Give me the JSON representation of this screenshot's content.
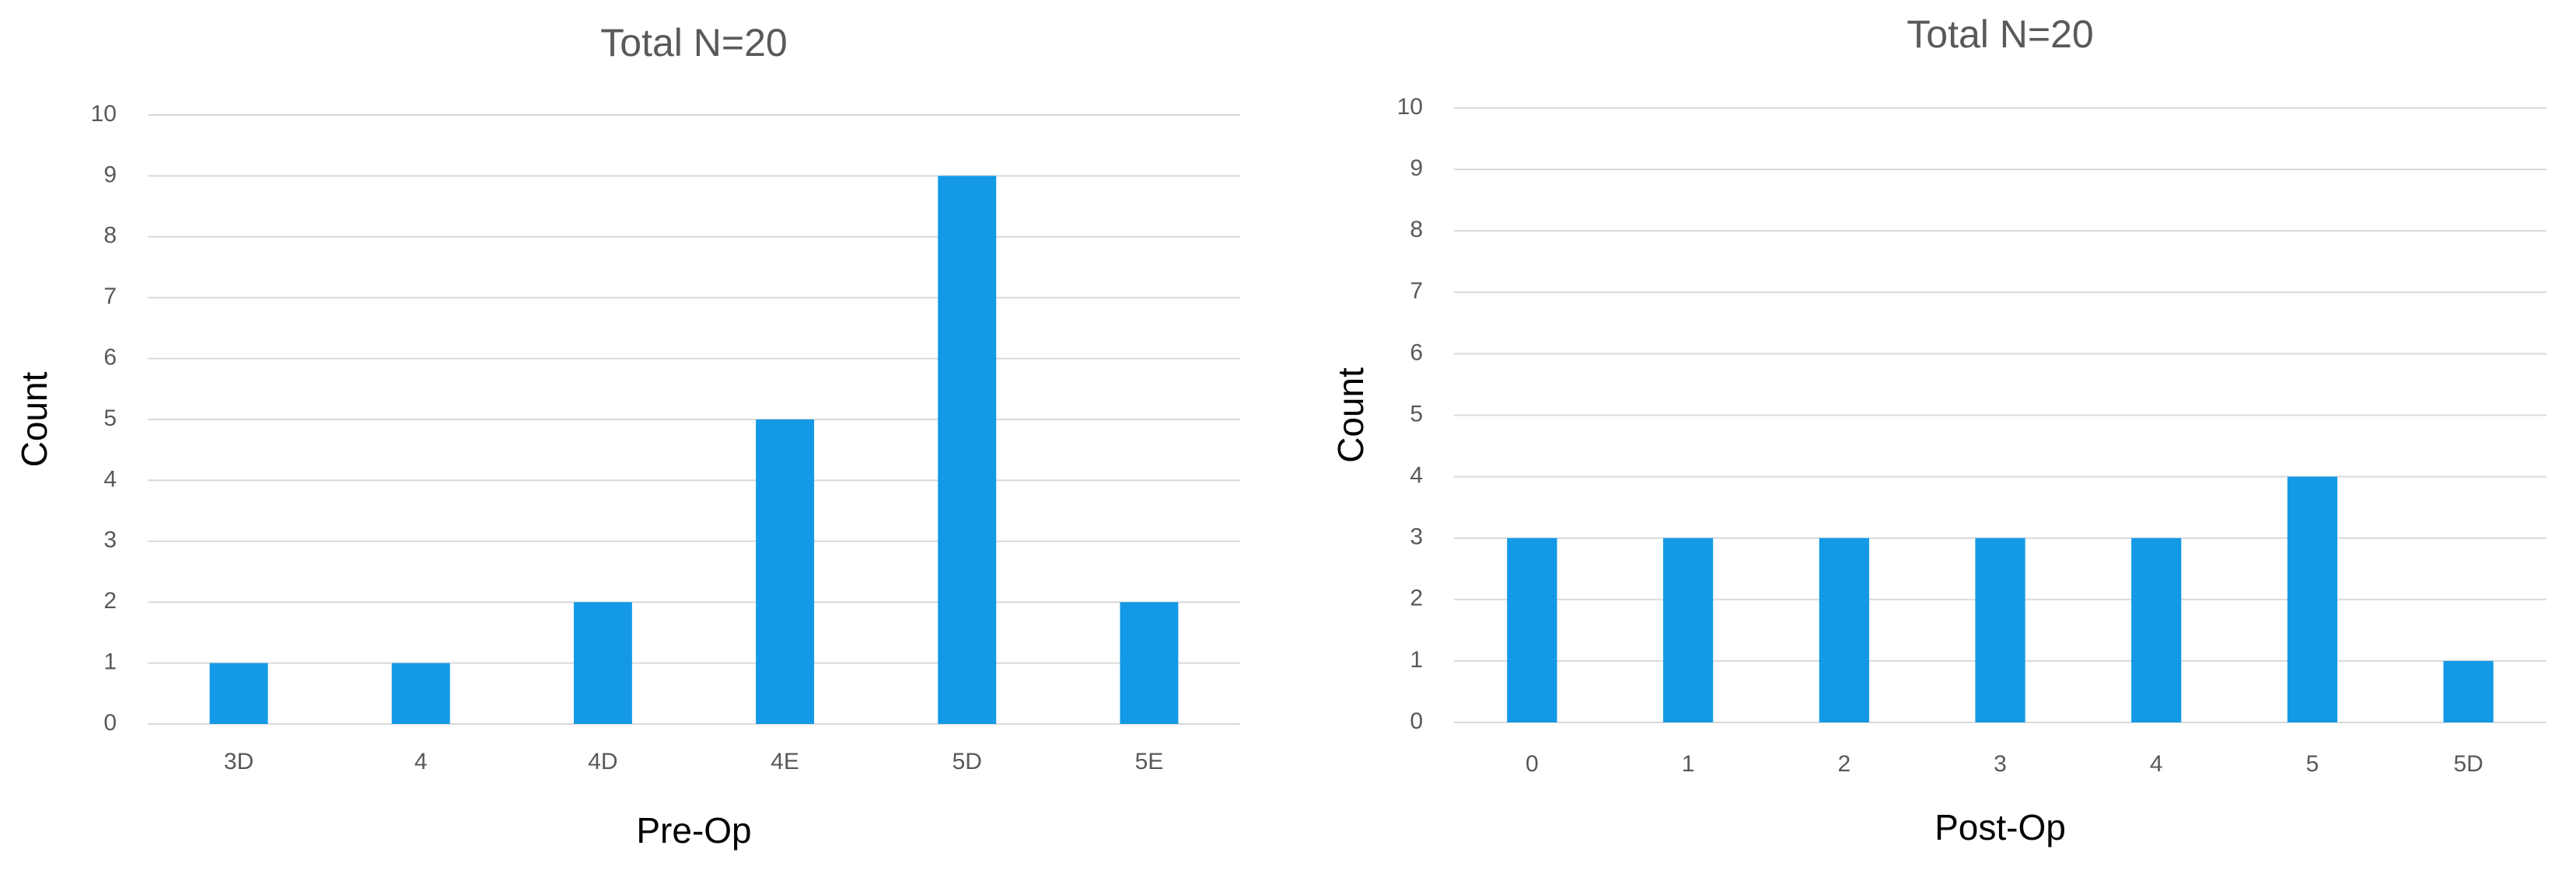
{
  "chart_data": [
    {
      "type": "bar",
      "title": "Total N=20",
      "x_label": "Pre-Op",
      "y_label": "Count",
      "categories": [
        "3D",
        "4",
        "4D",
        "4E",
        "5D",
        "5E"
      ],
      "values": [
        1,
        1,
        2,
        5,
        9,
        2
      ],
      "color": "#1399e6",
      "ylim": [
        0,
        10
      ],
      "yticks": [
        0,
        1,
        2,
        3,
        4,
        5,
        6,
        7,
        8,
        9,
        10
      ],
      "grid": true
    },
    {
      "type": "bar",
      "title": "Total N=20",
      "x_label": "Post-Op",
      "y_label": "Count",
      "categories": [
        "0",
        "1",
        "2",
        "3",
        "4",
        "5",
        "5D"
      ],
      "values": [
        3,
        3,
        3,
        3,
        3,
        4,
        1
      ],
      "color": "#1399e6",
      "ylim": [
        0,
        10
      ],
      "yticks": [
        0,
        1,
        2,
        3,
        4,
        5,
        6,
        7,
        8,
        9,
        10
      ],
      "grid": true
    }
  ]
}
